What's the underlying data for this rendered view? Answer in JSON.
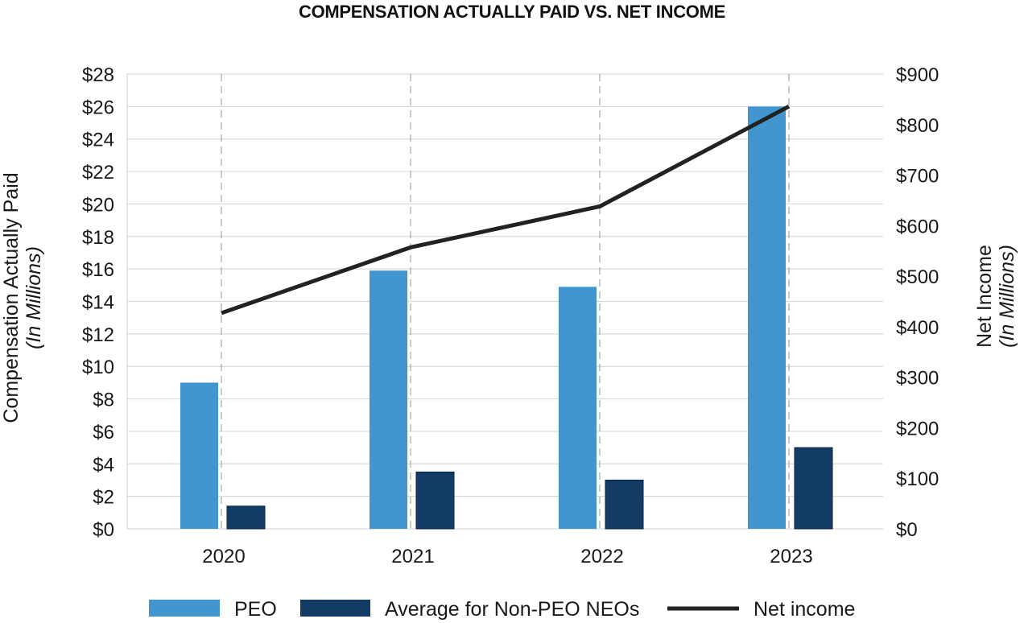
{
  "chart_data": {
    "type": "bar",
    "title": "COMPENSATION ACTUALLY PAID VS. NET INCOME",
    "categories": [
      "2020",
      "2021",
      "2022",
      "2023"
    ],
    "series": [
      {
        "name": "PEO",
        "type": "bar",
        "axis": "left",
        "color": "#4196cf",
        "values": [
          9.0,
          15.9,
          14.9,
          26.0
        ]
      },
      {
        "name": "Average for Non-PEO NEOs",
        "type": "bar",
        "axis": "left",
        "color": "#123c65",
        "values": [
          1.4,
          3.5,
          3.0,
          5.0
        ]
      },
      {
        "name": "Net income",
        "type": "line",
        "axis": "right",
        "color": "#222222",
        "values": [
          427,
          557,
          638,
          836
        ]
      }
    ],
    "y_left": {
      "label": "Compensation Actually Paid",
      "sublabel": "(In Millions)",
      "ylim": [
        0,
        28
      ],
      "ticks": [
        "$0",
        "$2",
        "$4",
        "$6",
        "$8",
        "$10",
        "$12",
        "$14",
        "$16",
        "$18",
        "$20",
        "$22",
        "$24",
        "$26",
        "$28"
      ]
    },
    "y_right": {
      "label": "Net Income",
      "sublabel": "(In Millions)",
      "ylim": [
        0,
        900
      ],
      "ticks": [
        "$0",
        "$100",
        "$200",
        "$300",
        "$400",
        "$500",
        "$600",
        "$700",
        "$800",
        "$900"
      ]
    },
    "grid": true,
    "legend": [
      "PEO",
      "Average for Non-PEO NEOs",
      "Net income"
    ],
    "legend_position": "bottom"
  }
}
